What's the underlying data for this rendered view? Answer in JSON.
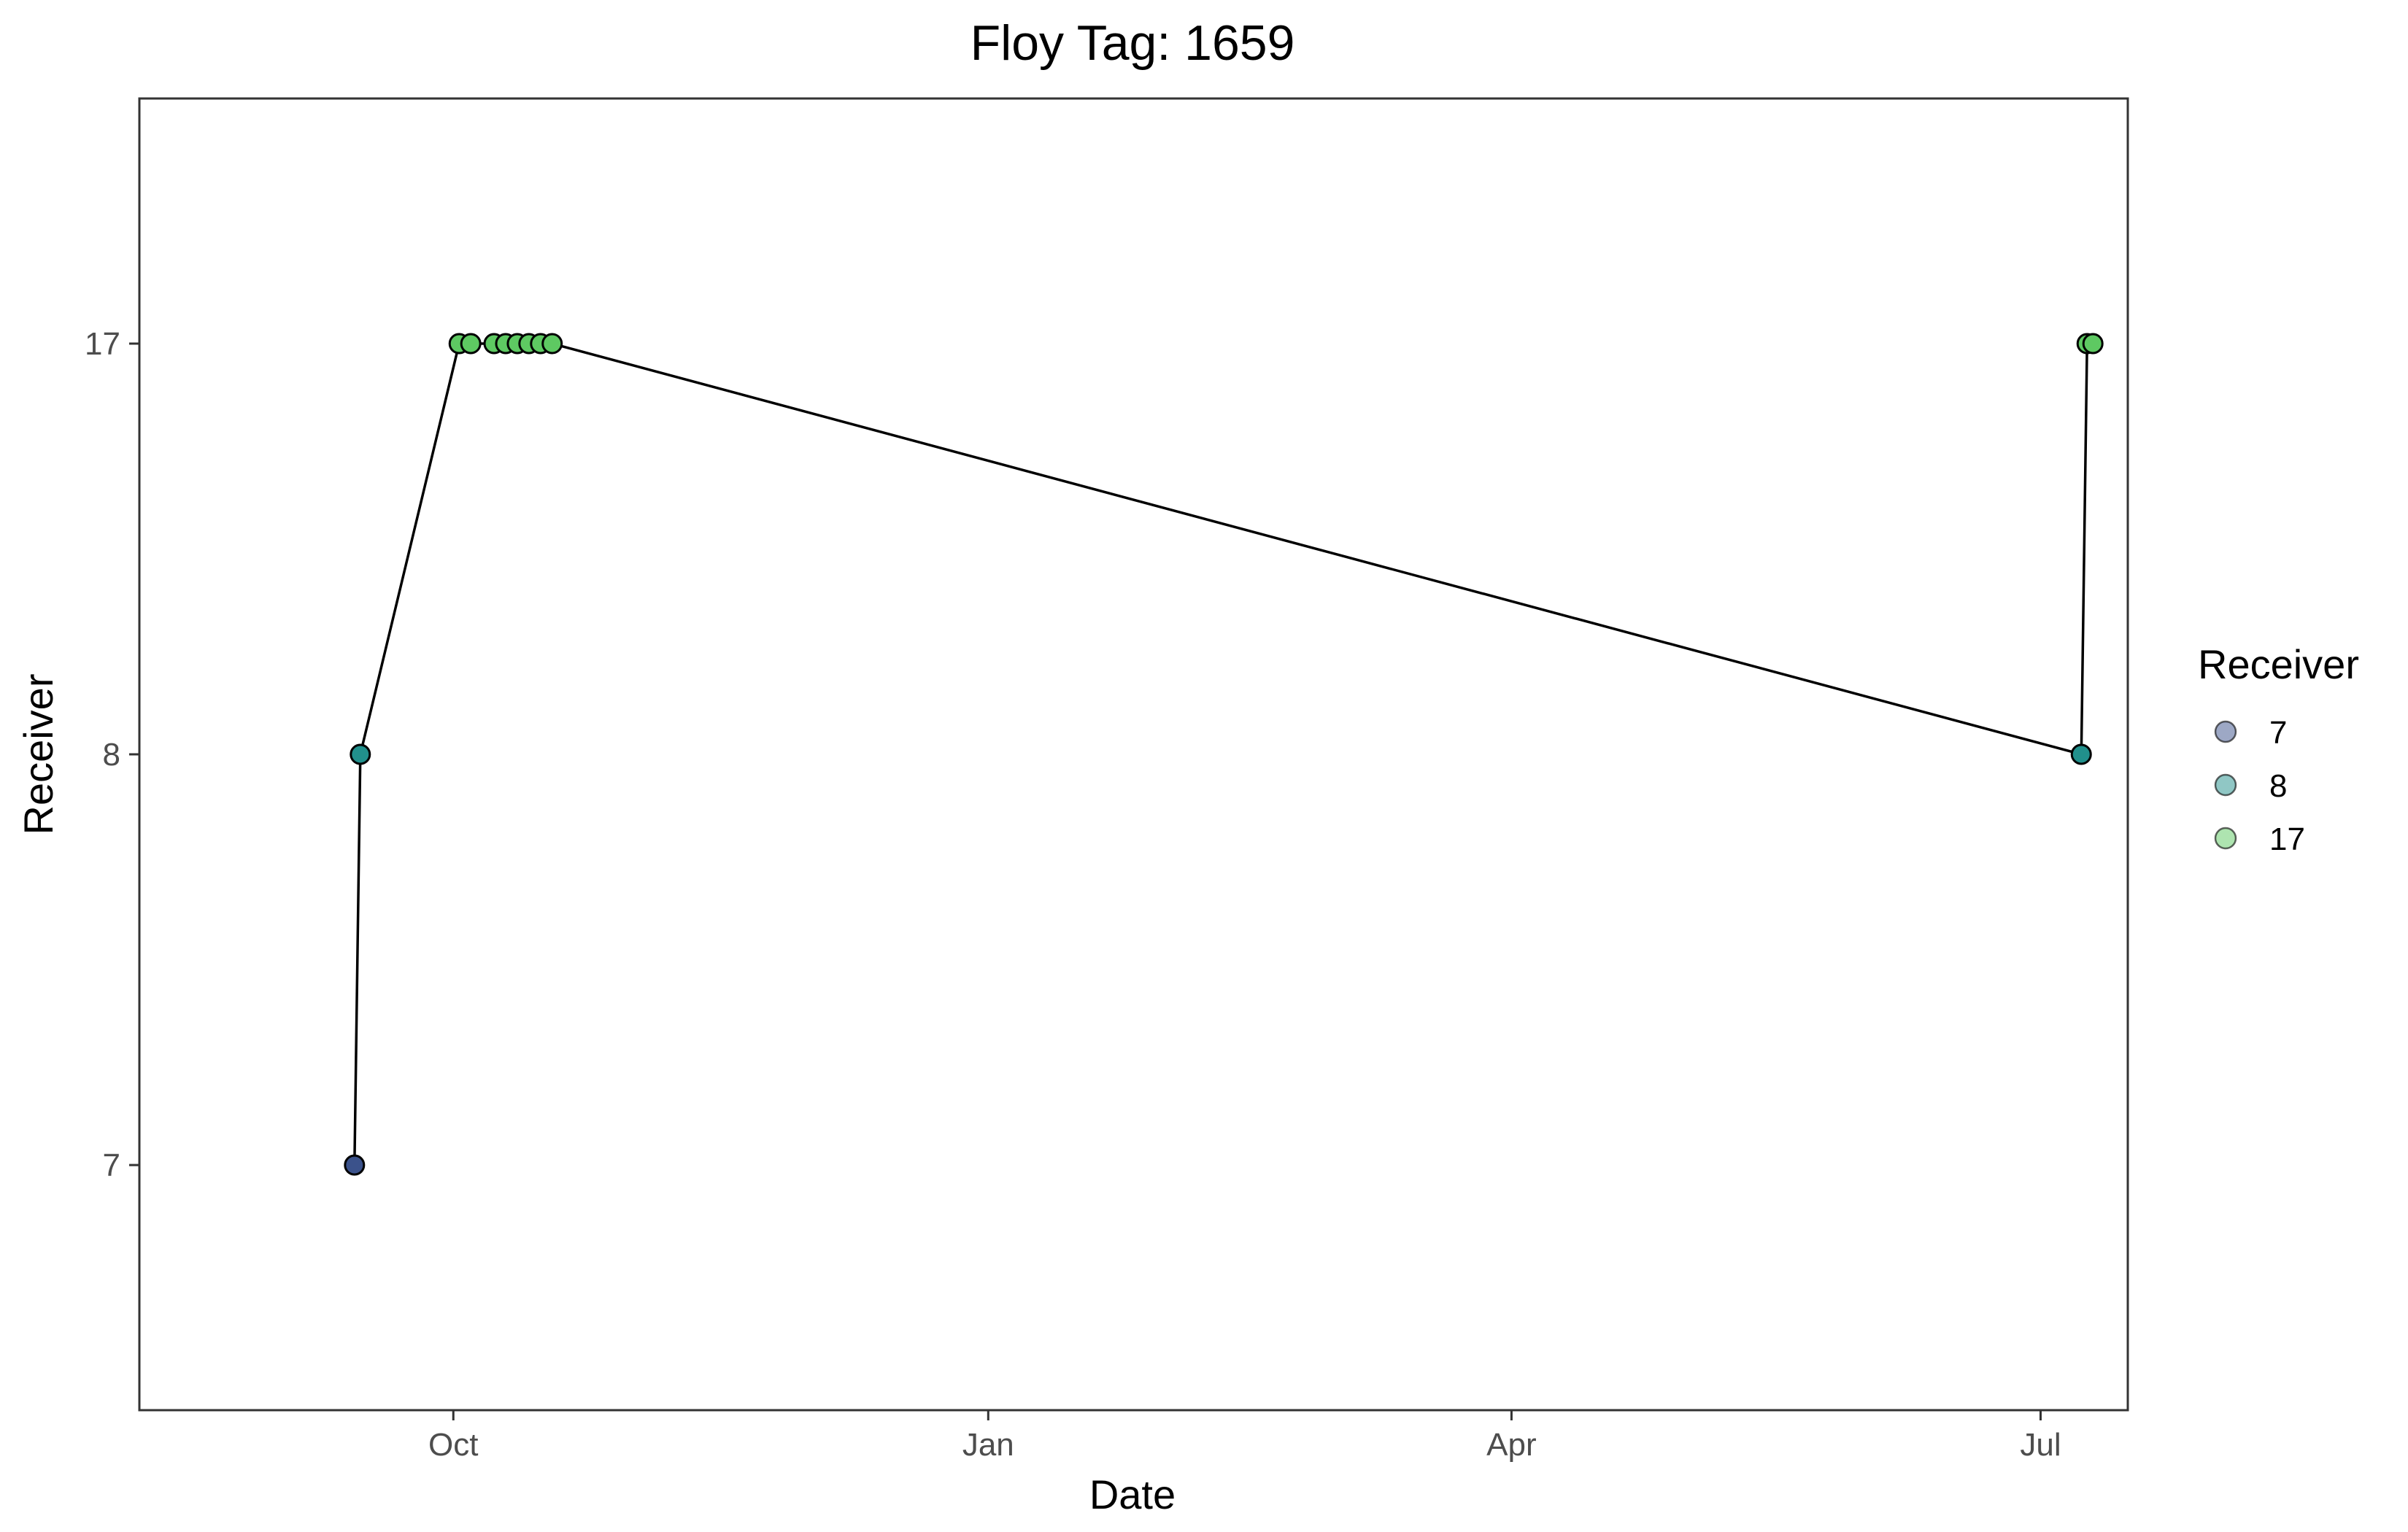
{
  "chart_data": {
    "type": "scatter",
    "title": "Floy Tag: 1659",
    "xlabel": "Date",
    "ylabel": "Receiver",
    "x_ticks": [
      {
        "label": "Oct",
        "date": "2021-10-01"
      },
      {
        "label": "Jan",
        "date": "2022-01-01"
      },
      {
        "label": "Apr",
        "date": "2022-04-01"
      },
      {
        "label": "Jul",
        "date": "2022-07-01"
      }
    ],
    "y_categories": [
      "7",
      "8",
      "17"
    ],
    "xlim": [
      "2021-08-08",
      "2022-07-16"
    ],
    "connecting_line": true,
    "grid": false,
    "legend": {
      "title": "Receiver",
      "position": "right",
      "entries": [
        {
          "label": "7",
          "color": "#3b528b"
        },
        {
          "label": "8",
          "color": "#21908c"
        },
        {
          "label": "17",
          "color": "#5ec962"
        }
      ]
    },
    "points": [
      {
        "date": "2021-09-14",
        "receiver": "7"
      },
      {
        "date": "2021-09-15",
        "receiver": "8"
      },
      {
        "date": "2021-10-02",
        "receiver": "17"
      },
      {
        "date": "2021-10-04",
        "receiver": "17"
      },
      {
        "date": "2021-10-08",
        "receiver": "17"
      },
      {
        "date": "2021-10-10",
        "receiver": "17"
      },
      {
        "date": "2021-10-12",
        "receiver": "17"
      },
      {
        "date": "2021-10-14",
        "receiver": "17"
      },
      {
        "date": "2021-10-16",
        "receiver": "17"
      },
      {
        "date": "2021-10-18",
        "receiver": "17"
      },
      {
        "date": "2022-07-08",
        "receiver": "8"
      },
      {
        "date": "2022-07-09",
        "receiver": "17"
      },
      {
        "date": "2022-07-10",
        "receiver": "17"
      }
    ]
  }
}
